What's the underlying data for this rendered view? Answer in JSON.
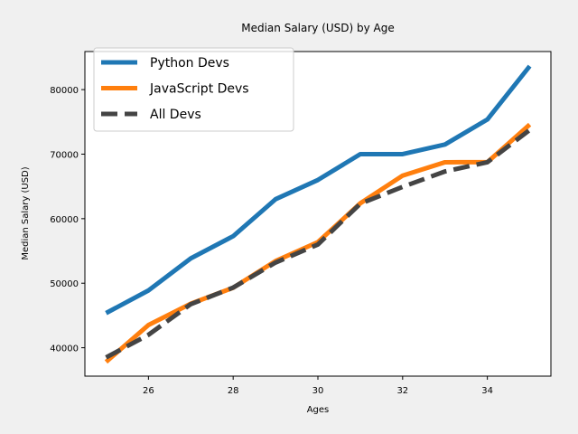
{
  "chart_data": {
    "type": "line",
    "title": "Median Salary (USD) by Age",
    "xlabel": "Ages",
    "ylabel": "Median Salary (USD)",
    "x": [
      25,
      26,
      27,
      28,
      29,
      30,
      31,
      32,
      33,
      34,
      35
    ],
    "xlim": [
      24.5,
      35.5
    ],
    "ylim": [
      35600,
      85900
    ],
    "xticks": [
      26,
      28,
      30,
      32,
      34
    ],
    "yticks": [
      40000,
      50000,
      60000,
      70000,
      80000
    ],
    "grid": false,
    "legend_position": "top-left",
    "series": [
      {
        "name": "Python Devs",
        "color": "#1f77b4",
        "line_style": "solid",
        "values": [
          45372,
          48876,
          53850,
          57287,
          63016,
          65998,
          70003,
          70000,
          71496,
          75370,
          83640
        ]
      },
      {
        "name": "JavaScript Devs",
        "color": "#ff7f0e",
        "line_style": "solid",
        "values": [
          37810,
          43515,
          46823,
          49293,
          53437,
          56373,
          62375,
          66674,
          68745,
          68746,
          74583
        ]
      },
      {
        "name": "All Devs",
        "color": "#444444",
        "line_style": "dashed",
        "values": [
          38496,
          42000,
          46752,
          49320,
          53200,
          56000,
          62316,
          64928,
          67317,
          68748,
          73752
        ]
      }
    ]
  }
}
